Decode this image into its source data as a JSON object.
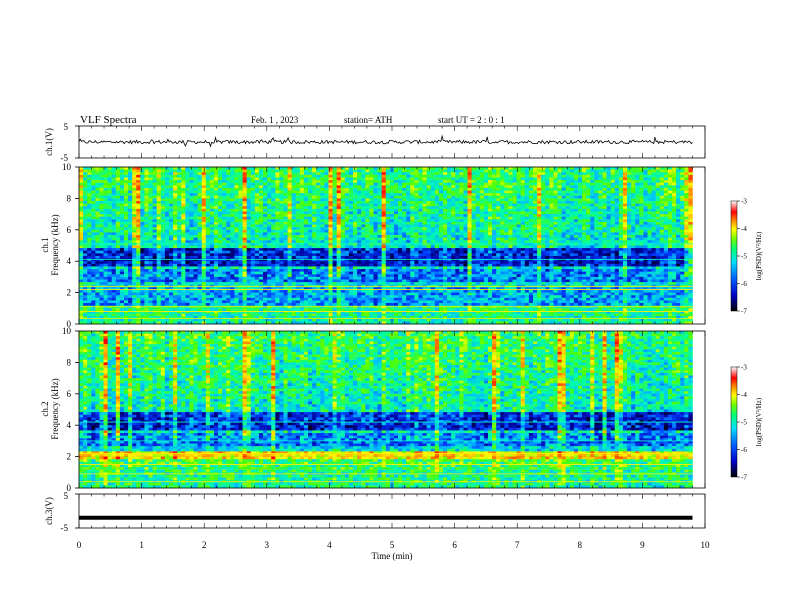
{
  "header": {
    "title": "VLF  Spectra",
    "date": "Feb. 1 , 2023",
    "station": "station= ATH",
    "start": "start  UT  =   2  : 0   : 1"
  },
  "colors": {
    "trace": "#000000",
    "colormap": [
      "#000020",
      "#0000a0",
      "#0040ff",
      "#00c8ff",
      "#00ffaa",
      "#50ff00",
      "#ffff00",
      "#ff8000",
      "#ff0000",
      "#ffc8ff"
    ]
  },
  "chart_data": [
    {
      "type": "line",
      "panel": "ch1-waveform",
      "ylabel": "ch.1(V)",
      "ylim": [
        -5,
        5
      ],
      "yticks": [
        5,
        -5
      ],
      "x_range": [
        0,
        9.8
      ],
      "description_values": "noisy trace around 0 V"
    },
    {
      "type": "heatmap",
      "panel": "ch1-spectrogram",
      "ylabel_top": "ch.1",
      "ylabel": "Frequency  (kHz)",
      "ylim": [
        0,
        10
      ],
      "yticks": [
        "0",
        "2",
        "4",
        "6",
        "8",
        "10"
      ],
      "x_range": [
        0,
        9.8
      ],
      "colorbar": {
        "label": "log(PSD)(V²/Hz)",
        "range": [
          -7,
          -3
        ],
        "ticks": [
          "-3",
          "-4",
          "-5",
          "-6",
          "-7"
        ]
      }
    },
    {
      "type": "heatmap",
      "panel": "ch2-spectrogram",
      "ylabel_top": "ch.2",
      "ylabel": "Frequency  (kHz)",
      "ylim": [
        0,
        10
      ],
      "yticks": [
        "0",
        "2",
        "4",
        "6",
        "8",
        "10"
      ],
      "x_range": [
        0,
        9.8
      ],
      "colorbar": {
        "label": "log(PSD)(V²/Hz)",
        "range": [
          -7,
          -3
        ],
        "ticks": [
          "-3",
          "-4",
          "-5",
          "-6",
          "-7"
        ]
      }
    },
    {
      "type": "line",
      "panel": "ch3-waveform",
      "ylabel": "ch.3(V)",
      "ylim": [
        -5,
        5
      ],
      "yticks": [
        5,
        -5
      ],
      "x_range": [
        0,
        9.8
      ],
      "y_constant": -2
    }
  ],
  "xaxis": {
    "label": "Time  (min)",
    "ticks": [
      "0",
      "1",
      "2",
      "3",
      "4",
      "5",
      "6",
      "7",
      "8",
      "9",
      "10"
    ],
    "xlim": [
      0,
      10
    ]
  }
}
